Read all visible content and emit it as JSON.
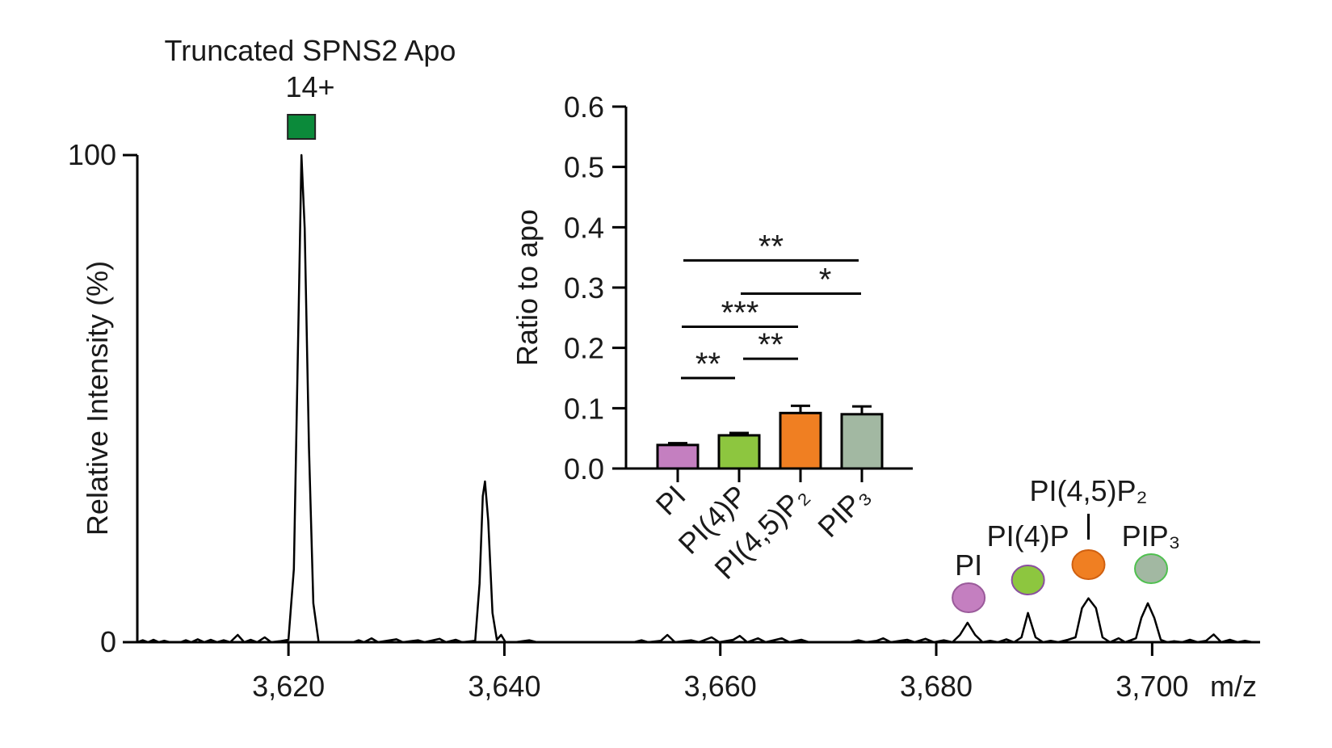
{
  "chart_data": [
    {
      "type": "line",
      "title": "",
      "xlabel": "m/z",
      "ylabel": "Relative Intensity (%)",
      "xlim": [
        3606,
        3710
      ],
      "ylim": [
        0,
        100
      ],
      "x_ticks": [
        3620,
        3640,
        3660,
        3680,
        3700
      ],
      "x_tick_labels": [
        "3,620",
        "3,640",
        "3,660",
        "3,680",
        "3,700"
      ],
      "y_ticks": [
        0,
        100
      ],
      "y_tick_labels": [
        "0",
        "100"
      ],
      "line_color": "#000000",
      "series": [
        {
          "values": [
            [
              3606,
              0
            ],
            [
              3606.5,
              0.4
            ],
            [
              3607,
              0
            ],
            [
              3607.5,
              0.5
            ],
            [
              3608,
              0
            ],
            [
              3608.5,
              0.3
            ],
            [
              3609,
              0
            ],
            [
              3610,
              0
            ],
            [
              3610.5,
              0.4
            ],
            [
              3611,
              0
            ],
            [
              3611.6,
              0.6
            ],
            [
              3612.2,
              0
            ],
            [
              3612.8,
              0.5
            ],
            [
              3613.4,
              0
            ],
            [
              3614,
              0.4
            ],
            [
              3614.6,
              0
            ],
            [
              3615.3,
              1.5
            ],
            [
              3615.9,
              0
            ],
            [
              3616.5,
              0.5
            ],
            [
              3617.1,
              0
            ],
            [
              3617.8,
              1.0
            ],
            [
              3618.4,
              0
            ],
            [
              3619.2,
              0.2
            ],
            [
              3620,
              0.5
            ],
            [
              3620.5,
              15
            ],
            [
              3621.0,
              75
            ],
            [
              3621.2,
              100
            ],
            [
              3621.5,
              85
            ],
            [
              3621.9,
              40
            ],
            [
              3622.3,
              8
            ],
            [
              3622.8,
              0
            ],
            [
              3624,
              0
            ],
            [
              3626,
              0
            ],
            [
              3626.5,
              0.4
            ],
            [
              3627,
              0
            ],
            [
              3627.7,
              0.8
            ],
            [
              3628.3,
              0
            ],
            [
              3630,
              0.6
            ],
            [
              3630.6,
              0
            ],
            [
              3632,
              0.4
            ],
            [
              3632.6,
              0
            ],
            [
              3634,
              0.7
            ],
            [
              3634.6,
              0
            ],
            [
              3635.5,
              0.5
            ],
            [
              3636.1,
              0
            ],
            [
              3637.3,
              0.3
            ],
            [
              3637.7,
              12
            ],
            [
              3638.0,
              30
            ],
            [
              3638.2,
              33
            ],
            [
              3638.5,
              25
            ],
            [
              3638.9,
              6
            ],
            [
              3639.3,
              0.5
            ],
            [
              3639.7,
              1.5
            ],
            [
              3640.1,
              0
            ],
            [
              3641,
              0
            ],
            [
              3642.3,
              0.4
            ],
            [
              3643,
              0
            ],
            [
              3652,
              0
            ],
            [
              3652.7,
              0.4
            ],
            [
              3653.3,
              0
            ],
            [
              3654.5,
              0.3
            ],
            [
              3655.1,
              1.5
            ],
            [
              3655.8,
              0
            ],
            [
              3657.3,
              0.4
            ],
            [
              3658,
              0
            ],
            [
              3659.2,
              1.0
            ],
            [
              3659.9,
              0
            ],
            [
              3661.2,
              0.5
            ],
            [
              3661.8,
              1.3
            ],
            [
              3662.5,
              0
            ],
            [
              3663.5,
              0.8
            ],
            [
              3664.2,
              0
            ],
            [
              3665.7,
              0.8
            ],
            [
              3666.4,
              0
            ],
            [
              3667.5,
              0.5
            ],
            [
              3668.2,
              0
            ],
            [
              3672,
              0
            ],
            [
              3672.8,
              0.4
            ],
            [
              3673.5,
              0
            ],
            [
              3674.5,
              0.3
            ],
            [
              3675.1,
              0.8
            ],
            [
              3675.8,
              0
            ],
            [
              3677.3,
              0.5
            ],
            [
              3678,
              0
            ],
            [
              3679,
              0.7
            ],
            [
              3679.8,
              0
            ],
            [
              3680.7,
              0.4
            ],
            [
              3681.5,
              0
            ],
            [
              3682.2,
              1.5
            ],
            [
              3682.9,
              4
            ],
            [
              3683.6,
              1.5
            ],
            [
              3684.3,
              0
            ],
            [
              3685,
              0.3
            ],
            [
              3685.7,
              0
            ],
            [
              3686.5,
              0.6
            ],
            [
              3687.2,
              0
            ],
            [
              3687.9,
              1.0
            ],
            [
              3688.5,
              6
            ],
            [
              3689.2,
              1.0
            ],
            [
              3689.9,
              0
            ],
            [
              3690.6,
              0.3
            ],
            [
              3691.3,
              0
            ],
            [
              3692.2,
              0.5
            ],
            [
              3692.9,
              1.0
            ],
            [
              3693.5,
              7
            ],
            [
              3694.1,
              9
            ],
            [
              3694.8,
              7
            ],
            [
              3695.4,
              1.0
            ],
            [
              3696.1,
              0
            ],
            [
              3696.9,
              0.8
            ],
            [
              3697.5,
              0
            ],
            [
              3698.5,
              0.8
            ],
            [
              3699.0,
              5
            ],
            [
              3699.6,
              8
            ],
            [
              3700.2,
              5
            ],
            [
              3700.8,
              0.5
            ],
            [
              3701.4,
              0
            ],
            [
              3702,
              0.2
            ],
            [
              3702.8,
              0
            ],
            [
              3703.5,
              0.5
            ],
            [
              3704.2,
              0
            ],
            [
              3705,
              0.3
            ],
            [
              3705.7,
              1.6
            ],
            [
              3706.4,
              0
            ],
            [
              3707.2,
              0.5
            ],
            [
              3707.9,
              0
            ],
            [
              3708.6,
              0.3
            ],
            [
              3709.3,
              0
            ],
            [
              3710,
              0
            ]
          ]
        }
      ],
      "annotations": {
        "apo_label": "Truncated SPNS2 Apo",
        "charge_label": "14+",
        "apo_marker_color": "#0b8a3a",
        "apo_marker_x": 3621.2,
        "lipid_peaks": [
          {
            "name": "PI",
            "label_html": "PI",
            "x": 3683.0,
            "color": "#c47fc0"
          },
          {
            "name": "PI(4)P",
            "label_html": "PI(4)P",
            "x": 3688.5,
            "color": "#8dc63f"
          },
          {
            "name": "PI(4,5)P2",
            "label_html": "PI(4,5)P₂",
            "x": 3694.1,
            "color": "#f07f22"
          },
          {
            "name": "PIP3",
            "label_html": "PIP₃",
            "x": 3699.9,
            "color": "#a2b8a2"
          }
        ]
      }
    },
    {
      "type": "bar",
      "title": "",
      "xlabel": "",
      "ylabel": "Ratio to apo",
      "ylim": [
        0,
        0.6
      ],
      "y_ticks": [
        0.0,
        0.1,
        0.2,
        0.3,
        0.4,
        0.5,
        0.6
      ],
      "y_tick_labels": [
        "0.0",
        "0.1",
        "0.2",
        "0.3",
        "0.4",
        "0.5",
        "0.6"
      ],
      "categories": [
        "PI",
        "PI(4)P",
        "PI(4,5)P₂",
        "PIP₃"
      ],
      "values": [
        0.039,
        0.055,
        0.092,
        0.09
      ],
      "errors": [
        0.003,
        0.004,
        0.012,
        0.013
      ],
      "colors": [
        "#c47fc0",
        "#8dc63f",
        "#f07f22",
        "#a2b8a2"
      ],
      "significance": [
        {
          "from": "PI",
          "to": "PIP₃",
          "label": "**",
          "y": 0.345
        },
        {
          "from": "PI(4)P",
          "to": "PIP₃",
          "label": "*",
          "y": 0.29
        },
        {
          "from": "PI",
          "to": "PI(4,5)P₂",
          "label": "***",
          "y": 0.235
        },
        {
          "from": "PI(4)P",
          "to": "PI(4,5)P₂",
          "label": "**",
          "y": 0.182
        },
        {
          "from": "PI",
          "to": "PI(4)P",
          "label": "**",
          "y": 0.15
        }
      ]
    }
  ]
}
